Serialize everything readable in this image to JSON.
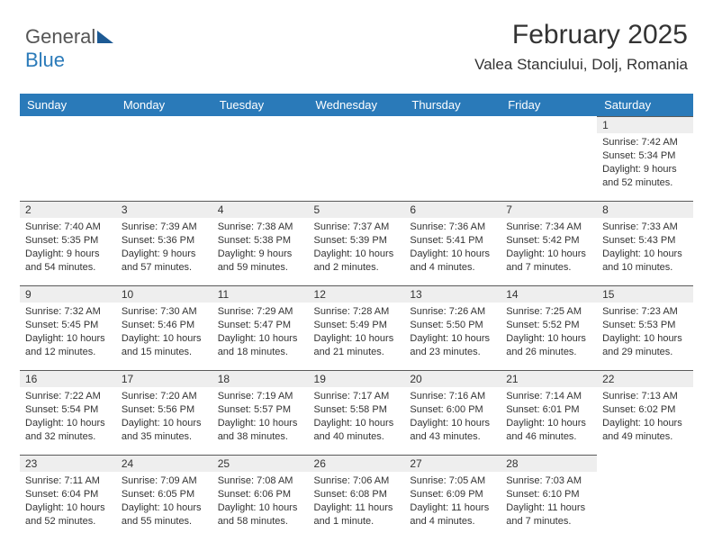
{
  "logo": {
    "part1": "General",
    "part2": "Blue"
  },
  "header": {
    "month": "February 2025",
    "location": "Valea Stanciului, Dolj, Romania"
  },
  "style": {
    "header_bg": "#2a7ab9",
    "header_text": "#ffffff",
    "daynum_bg": "#eeeeee",
    "daynum_border_top": "#5a5a5a",
    "body_text": "#333333",
    "font_size_month": 30,
    "font_size_location": 17,
    "font_size_dayheader": 13,
    "font_size_daynum": 12,
    "font_size_cell": 11
  },
  "dayHeaders": [
    "Sunday",
    "Monday",
    "Tuesday",
    "Wednesday",
    "Thursday",
    "Friday",
    "Saturday"
  ],
  "weeks": [
    [
      null,
      null,
      null,
      null,
      null,
      null,
      {
        "n": "1",
        "sr": "Sunrise: 7:42 AM",
        "ss": "Sunset: 5:34 PM",
        "dl1": "Daylight: 9 hours",
        "dl2": "and 52 minutes."
      }
    ],
    [
      {
        "n": "2",
        "sr": "Sunrise: 7:40 AM",
        "ss": "Sunset: 5:35 PM",
        "dl1": "Daylight: 9 hours",
        "dl2": "and 54 minutes."
      },
      {
        "n": "3",
        "sr": "Sunrise: 7:39 AM",
        "ss": "Sunset: 5:36 PM",
        "dl1": "Daylight: 9 hours",
        "dl2": "and 57 minutes."
      },
      {
        "n": "4",
        "sr": "Sunrise: 7:38 AM",
        "ss": "Sunset: 5:38 PM",
        "dl1": "Daylight: 9 hours",
        "dl2": "and 59 minutes."
      },
      {
        "n": "5",
        "sr": "Sunrise: 7:37 AM",
        "ss": "Sunset: 5:39 PM",
        "dl1": "Daylight: 10 hours",
        "dl2": "and 2 minutes."
      },
      {
        "n": "6",
        "sr": "Sunrise: 7:36 AM",
        "ss": "Sunset: 5:41 PM",
        "dl1": "Daylight: 10 hours",
        "dl2": "and 4 minutes."
      },
      {
        "n": "7",
        "sr": "Sunrise: 7:34 AM",
        "ss": "Sunset: 5:42 PM",
        "dl1": "Daylight: 10 hours",
        "dl2": "and 7 minutes."
      },
      {
        "n": "8",
        "sr": "Sunrise: 7:33 AM",
        "ss": "Sunset: 5:43 PM",
        "dl1": "Daylight: 10 hours",
        "dl2": "and 10 minutes."
      }
    ],
    [
      {
        "n": "9",
        "sr": "Sunrise: 7:32 AM",
        "ss": "Sunset: 5:45 PM",
        "dl1": "Daylight: 10 hours",
        "dl2": "and 12 minutes."
      },
      {
        "n": "10",
        "sr": "Sunrise: 7:30 AM",
        "ss": "Sunset: 5:46 PM",
        "dl1": "Daylight: 10 hours",
        "dl2": "and 15 minutes."
      },
      {
        "n": "11",
        "sr": "Sunrise: 7:29 AM",
        "ss": "Sunset: 5:47 PM",
        "dl1": "Daylight: 10 hours",
        "dl2": "and 18 minutes."
      },
      {
        "n": "12",
        "sr": "Sunrise: 7:28 AM",
        "ss": "Sunset: 5:49 PM",
        "dl1": "Daylight: 10 hours",
        "dl2": "and 21 minutes."
      },
      {
        "n": "13",
        "sr": "Sunrise: 7:26 AM",
        "ss": "Sunset: 5:50 PM",
        "dl1": "Daylight: 10 hours",
        "dl2": "and 23 minutes."
      },
      {
        "n": "14",
        "sr": "Sunrise: 7:25 AM",
        "ss": "Sunset: 5:52 PM",
        "dl1": "Daylight: 10 hours",
        "dl2": "and 26 minutes."
      },
      {
        "n": "15",
        "sr": "Sunrise: 7:23 AM",
        "ss": "Sunset: 5:53 PM",
        "dl1": "Daylight: 10 hours",
        "dl2": "and 29 minutes."
      }
    ],
    [
      {
        "n": "16",
        "sr": "Sunrise: 7:22 AM",
        "ss": "Sunset: 5:54 PM",
        "dl1": "Daylight: 10 hours",
        "dl2": "and 32 minutes."
      },
      {
        "n": "17",
        "sr": "Sunrise: 7:20 AM",
        "ss": "Sunset: 5:56 PM",
        "dl1": "Daylight: 10 hours",
        "dl2": "and 35 minutes."
      },
      {
        "n": "18",
        "sr": "Sunrise: 7:19 AM",
        "ss": "Sunset: 5:57 PM",
        "dl1": "Daylight: 10 hours",
        "dl2": "and 38 minutes."
      },
      {
        "n": "19",
        "sr": "Sunrise: 7:17 AM",
        "ss": "Sunset: 5:58 PM",
        "dl1": "Daylight: 10 hours",
        "dl2": "and 40 minutes."
      },
      {
        "n": "20",
        "sr": "Sunrise: 7:16 AM",
        "ss": "Sunset: 6:00 PM",
        "dl1": "Daylight: 10 hours",
        "dl2": "and 43 minutes."
      },
      {
        "n": "21",
        "sr": "Sunrise: 7:14 AM",
        "ss": "Sunset: 6:01 PM",
        "dl1": "Daylight: 10 hours",
        "dl2": "and 46 minutes."
      },
      {
        "n": "22",
        "sr": "Sunrise: 7:13 AM",
        "ss": "Sunset: 6:02 PM",
        "dl1": "Daylight: 10 hours",
        "dl2": "and 49 minutes."
      }
    ],
    [
      {
        "n": "23",
        "sr": "Sunrise: 7:11 AM",
        "ss": "Sunset: 6:04 PM",
        "dl1": "Daylight: 10 hours",
        "dl2": "and 52 minutes."
      },
      {
        "n": "24",
        "sr": "Sunrise: 7:09 AM",
        "ss": "Sunset: 6:05 PM",
        "dl1": "Daylight: 10 hours",
        "dl2": "and 55 minutes."
      },
      {
        "n": "25",
        "sr": "Sunrise: 7:08 AM",
        "ss": "Sunset: 6:06 PM",
        "dl1": "Daylight: 10 hours",
        "dl2": "and 58 minutes."
      },
      {
        "n": "26",
        "sr": "Sunrise: 7:06 AM",
        "ss": "Sunset: 6:08 PM",
        "dl1": "Daylight: 11 hours",
        "dl2": "and 1 minute."
      },
      {
        "n": "27",
        "sr": "Sunrise: 7:05 AM",
        "ss": "Sunset: 6:09 PM",
        "dl1": "Daylight: 11 hours",
        "dl2": "and 4 minutes."
      },
      {
        "n": "28",
        "sr": "Sunrise: 7:03 AM",
        "ss": "Sunset: 6:10 PM",
        "dl1": "Daylight: 11 hours",
        "dl2": "and 7 minutes."
      },
      null
    ]
  ]
}
